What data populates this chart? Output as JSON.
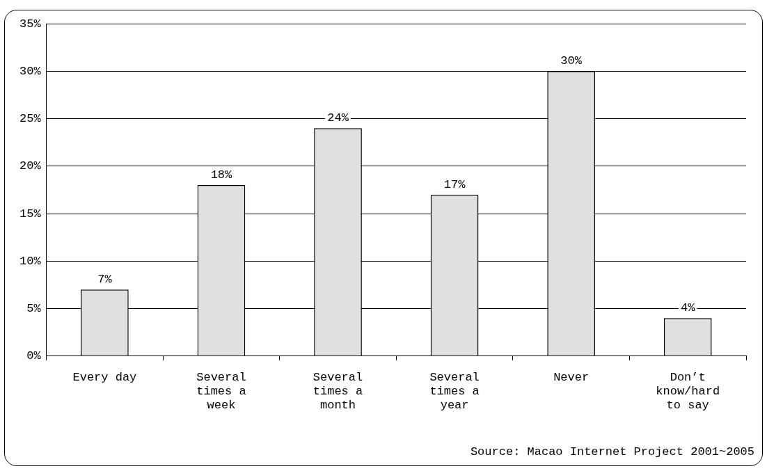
{
  "chart_data": {
    "type": "bar",
    "categories": [
      "Every day",
      "Several times a week",
      "Several times a month",
      "Several times a year",
      "Never",
      "Don’t know/hard to say"
    ],
    "values": [
      7,
      18,
      24,
      17,
      30,
      4
    ],
    "value_labels": [
      "7%",
      "18%",
      "24%",
      "17%",
      "30%",
      "4%"
    ],
    "color": "#e0e0e0",
    "ylim": [
      0,
      35
    ],
    "yticks": [
      {
        "value": 0,
        "label": "0%"
      },
      {
        "value": 5,
        "label": "5%"
      },
      {
        "value": 10,
        "label": "10%"
      },
      {
        "value": 15,
        "label": "15%"
      },
      {
        "value": 20,
        "label": "20%"
      },
      {
        "value": 25,
        "label": "25%"
      },
      {
        "value": 30,
        "label": "30%"
      },
      {
        "value": 35,
        "label": "35%"
      }
    ],
    "grid": "y",
    "annotations": [
      "Source: Macao Internet Project 2001~2005"
    ]
  }
}
